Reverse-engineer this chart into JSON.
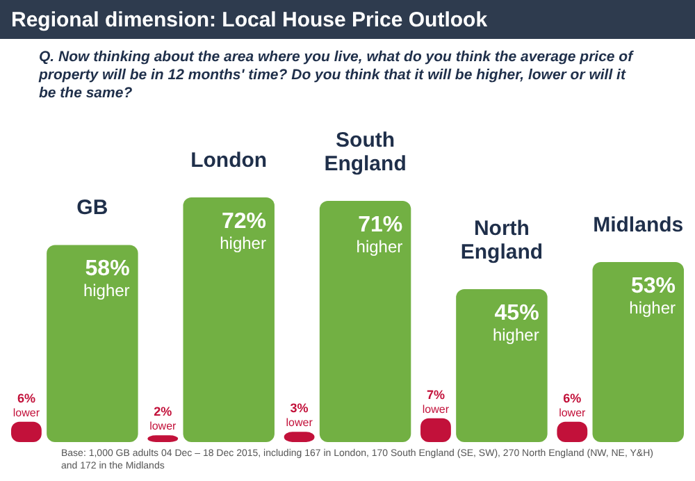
{
  "chart_data": {
    "type": "bar",
    "title": "Regional dimension: Local House Price Outlook",
    "subtitle": "Q. Now thinking about the area where you live, what do you think the average price of property will be in 12 months' time? Do you think that it will be higher, lower or will it be the same?",
    "categories": [
      "GB",
      "London",
      "South England",
      "North England",
      "Midlands"
    ],
    "series": [
      {
        "color": "#c2113a",
        "values": [
          6,
          2,
          3,
          7,
          6
        ],
        "value_labels": [
          "6% lower",
          "2% lower",
          "3% lower",
          "7% lower",
          "6% lower"
        ]
      },
      {
        "color": "#72b043",
        "values": [
          58,
          72,
          71,
          45,
          53
        ],
        "value_labels": [
          "58% higher",
          "72% higher",
          "71% higher",
          "45% higher",
          "53% higher"
        ]
      }
    ],
    "annotations": [
      "Base: 1,000 GB adults 04 Dec – 18 Dec 2015, including 167 in London, 170 South England (SE, SW), 270 North England (NW, NE, Y&H) and 172 in the Midlands"
    ]
  }
}
